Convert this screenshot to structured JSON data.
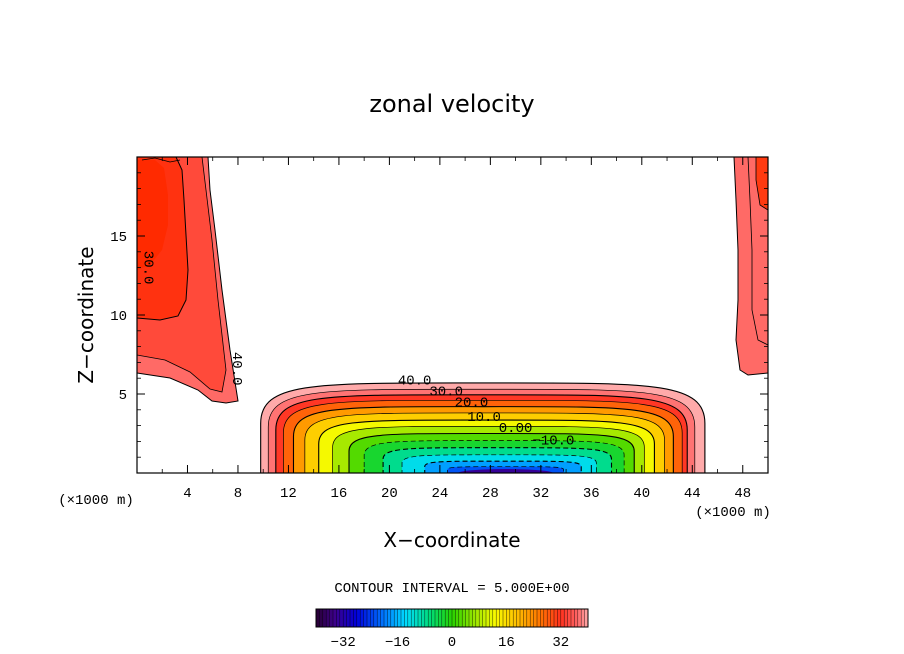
{
  "chart_data": {
    "type": "contour",
    "title": "zonal velocity",
    "xlabel": "X−coordinate",
    "ylabel": "Z−coordinate",
    "x_unit_left": "(×1000 m)",
    "x_unit_right": "(×1000 m)",
    "xlim": [
      0,
      50
    ],
    "ylim": [
      0,
      20
    ],
    "x_ticks": [
      4,
      8,
      12,
      16,
      20,
      24,
      28,
      32,
      36,
      40,
      44,
      48
    ],
    "y_ticks": [
      5,
      10,
      15
    ],
    "contour_labels": [
      {
        "text": "40.0",
        "x": 22.0,
        "z": 5.6,
        "rotate": 0
      },
      {
        "text": "30.0",
        "x": 24.5,
        "z": 4.9,
        "rotate": 0
      },
      {
        "text": "20.0",
        "x": 26.5,
        "z": 4.2,
        "rotate": 0
      },
      {
        "text": "10.0",
        "x": 27.5,
        "z": 3.3,
        "rotate": 0
      },
      {
        "text": "0.00",
        "x": 30.0,
        "z": 2.6,
        "rotate": 0
      },
      {
        "text": "−10.0",
        "x": 33.0,
        "z": 1.8,
        "rotate": 0
      },
      {
        "text": "30.0",
        "x": 0.6,
        "z": 13.0,
        "rotate": 90
      },
      {
        "text": "40.0",
        "x": 7.6,
        "z": 6.6,
        "rotate": 90
      }
    ],
    "contour_interval_text": "CONTOUR INTERVAL = 5.000E+00",
    "colorbar": {
      "min": -40,
      "max": 40,
      "tick_values": [
        -32,
        -16,
        0,
        16,
        32
      ],
      "tick_labels": [
        "−32",
        "−16",
        "0",
        "16",
        "32"
      ]
    },
    "grid": false
  }
}
